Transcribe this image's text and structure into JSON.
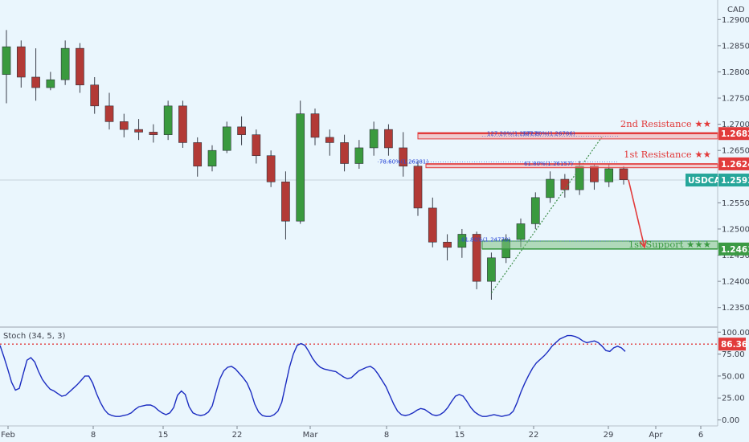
{
  "chart_data": [
    {
      "type": "candlestick",
      "currency": "CAD",
      "symbol": "USDCAD",
      "ylim": [
        1.2325,
        1.2925
      ],
      "y_ticks": [
        "1.29000",
        "1.28500",
        "1.28000",
        "1.27500",
        "1.27000",
        "1.26500",
        "1.26000",
        "1.25500",
        "1.25000",
        "1.24500",
        "1.24000",
        "1.23500"
      ],
      "y_tick_values": [
        1.29,
        1.285,
        1.28,
        1.275,
        1.27,
        1.265,
        1.26,
        1.255,
        1.25,
        1.245,
        1.24,
        1.235
      ],
      "x_ticks": [
        "Feb",
        "8",
        "15",
        "22",
        "Mar",
        "8",
        "15",
        "22",
        "29",
        "Apr",
        "6"
      ],
      "candles": [
        {
          "label": "Feb 1",
          "o": 1.2795,
          "h": 1.288,
          "l": 1.274,
          "c": 1.2848
        },
        {
          "label": "Feb 2",
          "o": 1.2848,
          "h": 1.286,
          "l": 1.277,
          "c": 1.279
        },
        {
          "label": "Feb 3",
          "o": 1.279,
          "h": 1.2845,
          "l": 1.2745,
          "c": 1.277
        },
        {
          "label": "Feb 4",
          "o": 1.277,
          "h": 1.28,
          "l": 1.2765,
          "c": 1.2785
        },
        {
          "label": "Feb 5",
          "o": 1.2785,
          "h": 1.286,
          "l": 1.2775,
          "c": 1.2845
        },
        {
          "label": "Feb 8",
          "o": 1.2845,
          "h": 1.2855,
          "l": 1.276,
          "c": 1.2775
        },
        {
          "label": "Feb 9",
          "o": 1.2775,
          "h": 1.279,
          "l": 1.272,
          "c": 1.2735
        },
        {
          "label": "Feb 10",
          "o": 1.2735,
          "h": 1.276,
          "l": 1.269,
          "c": 1.2705
        },
        {
          "label": "Feb 11",
          "o": 1.2705,
          "h": 1.272,
          "l": 1.2675,
          "c": 1.269
        },
        {
          "label": "Feb 12",
          "o": 1.269,
          "h": 1.271,
          "l": 1.267,
          "c": 1.2685
        },
        {
          "label": "Feb 15",
          "o": 1.2685,
          "h": 1.27,
          "l": 1.2665,
          "c": 1.268
        },
        {
          "label": "Feb 16",
          "o": 1.268,
          "h": 1.2745,
          "l": 1.267,
          "c": 1.2735
        },
        {
          "label": "Feb 17",
          "o": 1.2735,
          "h": 1.2745,
          "l": 1.2655,
          "c": 1.2665
        },
        {
          "label": "Feb 18",
          "o": 1.2665,
          "h": 1.2675,
          "l": 1.26,
          "c": 1.262
        },
        {
          "label": "Feb 19",
          "o": 1.262,
          "h": 1.266,
          "l": 1.261,
          "c": 1.265
        },
        {
          "label": "Feb 22",
          "o": 1.265,
          "h": 1.2705,
          "l": 1.2645,
          "c": 1.2695
        },
        {
          "label": "Feb 23",
          "o": 1.2695,
          "h": 1.2715,
          "l": 1.266,
          "c": 1.268
        },
        {
          "label": "Feb 24",
          "o": 1.268,
          "h": 1.269,
          "l": 1.2625,
          "c": 1.264
        },
        {
          "label": "Feb 25",
          "o": 1.264,
          "h": 1.265,
          "l": 1.258,
          "c": 1.259
        },
        {
          "label": "Feb 26",
          "o": 1.259,
          "h": 1.261,
          "l": 1.248,
          "c": 1.2515
        },
        {
          "label": "Mar 1",
          "o": 1.2515,
          "h": 1.2745,
          "l": 1.251,
          "c": 1.272
        },
        {
          "label": "Mar 2",
          "o": 1.272,
          "h": 1.273,
          "l": 1.266,
          "c": 1.2675
        },
        {
          "label": "Mar 3",
          "o": 1.2675,
          "h": 1.269,
          "l": 1.264,
          "c": 1.2665
        },
        {
          "label": "Mar 4",
          "o": 1.2665,
          "h": 1.268,
          "l": 1.261,
          "c": 1.2625
        },
        {
          "label": "Mar 5",
          "o": 1.2625,
          "h": 1.267,
          "l": 1.2615,
          "c": 1.2655
        },
        {
          "label": "Mar 8",
          "o": 1.2655,
          "h": 1.2705,
          "l": 1.264,
          "c": 1.269
        },
        {
          "label": "Mar 9",
          "o": 1.269,
          "h": 1.27,
          "l": 1.264,
          "c": 1.2655
        },
        {
          "label": "Mar 10",
          "o": 1.2655,
          "h": 1.2685,
          "l": 1.26,
          "c": 1.262
        },
        {
          "label": "Mar 11",
          "o": 1.262,
          "h": 1.263,
          "l": 1.2525,
          "c": 1.254
        },
        {
          "label": "Mar 12",
          "o": 1.254,
          "h": 1.256,
          "l": 1.2465,
          "c": 1.2475
        },
        {
          "label": "Mar 15",
          "o": 1.2475,
          "h": 1.249,
          "l": 1.244,
          "c": 1.2465
        },
        {
          "label": "Mar 16",
          "o": 1.2465,
          "h": 1.25,
          "l": 1.2445,
          "c": 1.249
        },
        {
          "label": "Mar 17",
          "o": 1.249,
          "h": 1.2495,
          "l": 1.2385,
          "c": 1.24
        },
        {
          "label": "Mar 18",
          "o": 1.24,
          "h": 1.2455,
          "l": 1.2365,
          "c": 1.2445
        },
        {
          "label": "Mar 19",
          "o": 1.2445,
          "h": 1.249,
          "l": 1.2435,
          "c": 1.248
        },
        {
          "label": "Mar 22",
          "o": 1.248,
          "h": 1.252,
          "l": 1.2465,
          "c": 1.251
        },
        {
          "label": "Mar 23",
          "o": 1.251,
          "h": 1.257,
          "l": 1.25,
          "c": 1.256
        },
        {
          "label": "Mar 24",
          "o": 1.256,
          "h": 1.261,
          "l": 1.255,
          "c": 1.2595
        },
        {
          "label": "Mar 25",
          "o": 1.2595,
          "h": 1.2605,
          "l": 1.256,
          "c": 1.2575
        },
        {
          "label": "Mar 26",
          "o": 1.2575,
          "h": 1.263,
          "l": 1.2565,
          "c": 1.262
        },
        {
          "label": "Mar 29",
          "o": 1.262,
          "h": 1.2625,
          "l": 1.2575,
          "c": 1.259
        },
        {
          "label": "Mar 30",
          "o": 1.259,
          "h": 1.2625,
          "l": 1.258,
          "c": 1.2615
        },
        {
          "label": "Mar 31",
          "o": 1.2615,
          "h": 1.262,
          "l": 1.2585,
          "c": 1.2594
        }
      ],
      "levels": [
        {
          "name": "2nd Resistance ★★",
          "value": 1.26822,
          "label": "1.26822",
          "color": "#e23b3b",
          "zone": [
            1.2672,
            1.2684
          ]
        },
        {
          "name": "1st Resistance ★★",
          "value": 1.26244,
          "label": "1.26244",
          "color": "#e23b3b",
          "zone": [
            1.2617,
            1.2624
          ]
        },
        {
          "name": "1st Support ★★★",
          "value": 1.24618,
          "label": "1.24618",
          "color": "#3b9a44",
          "zone": [
            1.2462,
            1.2477
          ]
        }
      ],
      "current_price": {
        "symbol": "USDCAD",
        "value": 1.25935,
        "label": "1.25935",
        "color": "#26a69a"
      },
      "fib_labels": [
        "78.60%(1.26281)",
        "61.80%(1.26157)",
        "127.20%(1.26727)",
        "127.20%(1.26786)",
        "61.80%(1.24770)"
      ],
      "projection": {
        "from_label": "Mar 31",
        "from_value": 1.2594,
        "to_value": 1.2465
      }
    },
    {
      "type": "line",
      "title": "Stoch (34, 5, 3)",
      "ylim": [
        -5,
        103
      ],
      "y_ticks": [
        "100.00",
        "75.00",
        "50.00",
        "25.00",
        "0.00"
      ],
      "y_tick_values": [
        100,
        75,
        50,
        25,
        0
      ],
      "overbought": {
        "value": 86.36,
        "label": "86.36",
        "color": "#e23b3b"
      },
      "series": [
        {
          "color": "#1b2cc1",
          "values": [
            85,
            72,
            58,
            43,
            34,
            36,
            52,
            68,
            71,
            66,
            55,
            46,
            40,
            35,
            33,
            30,
            27,
            28,
            32,
            36,
            40,
            45,
            50,
            50,
            42,
            30,
            20,
            12,
            7,
            5,
            4,
            4,
            5,
            6,
            8,
            12,
            15,
            16,
            17,
            17,
            15,
            11,
            8,
            6,
            8,
            14,
            28,
            33,
            29,
            15,
            8,
            6,
            5,
            6,
            9,
            16,
            32,
            47,
            56,
            60,
            61,
            58,
            53,
            48,
            42,
            32,
            18,
            9,
            5,
            4,
            4,
            6,
            10,
            20,
            40,
            60,
            75,
            85,
            87,
            85,
            78,
            70,
            64,
            60,
            58,
            57,
            56,
            55,
            52,
            49,
            47,
            48,
            52,
            56,
            58,
            60,
            61,
            58,
            52,
            45,
            38,
            28,
            18,
            10,
            6,
            5,
            6,
            8,
            11,
            13,
            12,
            9,
            6,
            5,
            6,
            9,
            14,
            21,
            27,
            29,
            27,
            21,
            14,
            9,
            6,
            4,
            4,
            5,
            6,
            5,
            4,
            5,
            6,
            10,
            20,
            32,
            42,
            51,
            59,
            65,
            69,
            73,
            78,
            84,
            88,
            92,
            94,
            96,
            96,
            95,
            93,
            90,
            88,
            89,
            90,
            88,
            84,
            79,
            78,
            82,
            84,
            82,
            78
          ]
        }
      ]
    }
  ],
  "x_axis": {
    "ticks": [
      "Feb",
      "8",
      "15",
      "22",
      "Mar",
      "8",
      "15",
      "22",
      "29",
      "Apr",
      "6"
    ]
  }
}
